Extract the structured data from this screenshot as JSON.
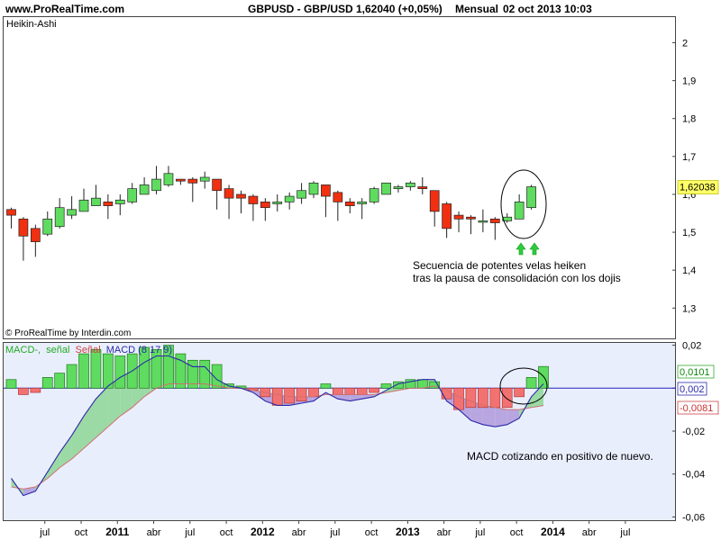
{
  "header": {
    "site": "www.ProRealTime.com",
    "instrument": "GBPUSD - GBP/USD",
    "quote": "1,62040 (+0,05%)",
    "period": "Mensual",
    "datetime": "02 oct 2013 10:03"
  },
  "credit": "© ProRealTime by Interdin.com",
  "price_panel": {
    "title": "Heikin-Ashi",
    "current_price_label": "1,62038",
    "annotation_lines": [
      "Secuencia de potentes velas heiken",
      "tras la pausa de consolidación con los dojis"
    ]
  },
  "macd_panel": {
    "legend": {
      "macd_minus": "MACD-,",
      "signal_word": "señal",
      "senal_series": "Señal",
      "macd_series": "MACD (8 17 9)"
    },
    "value_labels": {
      "histogram": "0,0101",
      "macd": "0,002",
      "signal": "-0,0081"
    },
    "annotation": "MACD cotizando en positivo de nuevo."
  },
  "colors": {
    "bull": "#5fdc5f",
    "bear": "#f03010",
    "hist_pos": "#5fdc5f",
    "hist_neg": "#f27272",
    "macd_line": "#2a2aa8",
    "signal_line": "#d07070",
    "fill_up": "#9bd9a5",
    "fill_down": "#b8a6e0",
    "zero_line": "#2222bb",
    "macd_bg": "#e9eefc",
    "price_label_bg": "#ffff66"
  },
  "chart_data": [
    {
      "type": "candlestick",
      "title": "GBPUSD - GBP/USD",
      "subtitle": "Heikin-Ashi",
      "x_tick_labels": [
        "jul",
        "oct",
        "2011",
        "abr",
        "jul",
        "oct",
        "2012",
        "abr",
        "jul",
        "oct",
        "2013",
        "abr",
        "jul",
        "oct",
        "2014",
        "abr",
        "jul"
      ],
      "y_ticks": [
        1.3,
        1.4,
        1.5,
        1.6,
        1.7,
        1.8,
        1.9,
        2.0
      ],
      "y_tick_labels": [
        "1,3",
        "1,4",
        "1,5",
        "1,6",
        "1,7",
        "1,8",
        "1,9",
        "2"
      ],
      "ylim": [
        1.22,
        2.07
      ],
      "grid": false,
      "candles": [
        {
          "open": 1.56,
          "high": 1.565,
          "low": 1.51,
          "close": 1.545
        },
        {
          "open": 1.535,
          "high": 1.54,
          "low": 1.425,
          "close": 1.49
        },
        {
          "open": 1.51,
          "high": 1.52,
          "low": 1.435,
          "close": 1.475
        },
        {
          "open": 1.495,
          "high": 1.555,
          "low": 1.49,
          "close": 1.535
        },
        {
          "open": 1.515,
          "high": 1.59,
          "low": 1.51,
          "close": 1.565
        },
        {
          "open": 1.545,
          "high": 1.595,
          "low": 1.535,
          "close": 1.56
        },
        {
          "open": 1.555,
          "high": 1.615,
          "low": 1.555,
          "close": 1.585
        },
        {
          "open": 1.57,
          "high": 1.625,
          "low": 1.57,
          "close": 1.59
        },
        {
          "open": 1.58,
          "high": 1.6,
          "low": 1.535,
          "close": 1.57
        },
        {
          "open": 1.575,
          "high": 1.6,
          "low": 1.545,
          "close": 1.585
        },
        {
          "open": 1.58,
          "high": 1.63,
          "low": 1.575,
          "close": 1.615
        },
        {
          "open": 1.6,
          "high": 1.645,
          "low": 1.6,
          "close": 1.625
        },
        {
          "open": 1.61,
          "high": 1.675,
          "low": 1.6,
          "close": 1.64
        },
        {
          "open": 1.625,
          "high": 1.675,
          "low": 1.62,
          "close": 1.655
        },
        {
          "open": 1.64,
          "high": 1.64,
          "low": 1.625,
          "close": 1.635
        },
        {
          "open": 1.64,
          "high": 1.645,
          "low": 1.58,
          "close": 1.63
        },
        {
          "open": 1.635,
          "high": 1.66,
          "low": 1.615,
          "close": 1.645
        },
        {
          "open": 1.64,
          "high": 1.64,
          "low": 1.56,
          "close": 1.61
        },
        {
          "open": 1.615,
          "high": 1.625,
          "low": 1.535,
          "close": 1.59
        },
        {
          "open": 1.6,
          "high": 1.61,
          "low": 1.55,
          "close": 1.59
        },
        {
          "open": 1.595,
          "high": 1.6,
          "low": 1.53,
          "close": 1.575
        },
        {
          "open": 1.58,
          "high": 1.59,
          "low": 1.53,
          "close": 1.565
        },
        {
          "open": 1.575,
          "high": 1.6,
          "low": 1.555,
          "close": 1.58
        },
        {
          "open": 1.58,
          "high": 1.605,
          "low": 1.56,
          "close": 1.595
        },
        {
          "open": 1.59,
          "high": 1.63,
          "low": 1.575,
          "close": 1.61
        },
        {
          "open": 1.6,
          "high": 1.635,
          "low": 1.59,
          "close": 1.63
        },
        {
          "open": 1.625,
          "high": 1.625,
          "low": 1.54,
          "close": 1.595
        },
        {
          "open": 1.605,
          "high": 1.61,
          "low": 1.53,
          "close": 1.58
        },
        {
          "open": 1.58,
          "high": 1.59,
          "low": 1.55,
          "close": 1.57
        },
        {
          "open": 1.575,
          "high": 1.59,
          "low": 1.535,
          "close": 1.58
        },
        {
          "open": 1.58,
          "high": 1.62,
          "low": 1.575,
          "close": 1.615
        },
        {
          "open": 1.6,
          "high": 1.625,
          "low": 1.6,
          "close": 1.63
        },
        {
          "open": 1.615,
          "high": 1.625,
          "low": 1.605,
          "close": 1.62
        },
        {
          "open": 1.62,
          "high": 1.635,
          "low": 1.61,
          "close": 1.63
        },
        {
          "open": 1.62,
          "high": 1.645,
          "low": 1.6,
          "close": 1.615
        },
        {
          "open": 1.61,
          "high": 1.61,
          "low": 1.515,
          "close": 1.555
        },
        {
          "open": 1.575,
          "high": 1.58,
          "low": 1.485,
          "close": 1.51
        },
        {
          "open": 1.545,
          "high": 1.555,
          "low": 1.5,
          "close": 1.535
        },
        {
          "open": 1.54,
          "high": 1.545,
          "low": 1.495,
          "close": 1.535
        },
        {
          "open": 1.53,
          "high": 1.56,
          "low": 1.5,
          "close": 1.53
        },
        {
          "open": 1.535,
          "high": 1.54,
          "low": 1.48,
          "close": 1.525
        },
        {
          "open": 1.53,
          "high": 1.55,
          "low": 1.525,
          "close": 1.54
        },
        {
          "open": 1.535,
          "high": 1.6,
          "low": 1.535,
          "close": 1.58
        },
        {
          "open": 1.565,
          "high": 1.625,
          "low": 1.56,
          "close": 1.62
        }
      ]
    },
    {
      "type": "bar",
      "title": "MACD (8 17 9)",
      "y_ticks": [
        0.02,
        0.0,
        -0.02,
        -0.04,
        -0.06
      ],
      "y_tick_labels": [
        "0,02",
        "0",
        "-0,02",
        "-0,04",
        "-0,06"
      ],
      "ylim": [
        -0.0615,
        0.0215
      ],
      "grid": false,
      "series": [
        {
          "name": "MACD-,",
          "type": "bar",
          "values": [
            0.004,
            -0.003,
            -0.002,
            0.005,
            0.007,
            0.011,
            0.016,
            0.018,
            0.016,
            0.015,
            0.016,
            0.019,
            0.018,
            0.02,
            0.016,
            0.013,
            0.013,
            0.011,
            0.002,
            0.001,
            -0.001,
            -0.004,
            -0.008,
            -0.007,
            -0.006,
            -0.004,
            0.002,
            -0.003,
            -0.003,
            -0.003,
            -0.002,
            0.002,
            0.003,
            0.004,
            0.004,
            0.003,
            -0.005,
            -0.01,
            -0.009,
            -0.009,
            -0.009,
            -0.009,
            -0.004,
            0.005,
            0.0101
          ]
        },
        {
          "name": "Señal",
          "type": "line",
          "values": [
            -0.046,
            -0.047,
            -0.046,
            -0.042,
            -0.037,
            -0.033,
            -0.028,
            -0.023,
            -0.018,
            -0.013,
            -0.009,
            -0.004,
            0.0,
            0.002,
            0.002,
            0.002,
            0.002,
            0.001,
            0.0,
            0.0,
            -0.001,
            -0.002,
            -0.003,
            -0.004,
            -0.004,
            -0.004,
            -0.003,
            -0.003,
            -0.003,
            -0.003,
            -0.003,
            -0.002,
            -0.001,
            0.0,
            0.0,
            0.001,
            -0.001,
            -0.004,
            -0.006,
            -0.008,
            -0.009,
            -0.01,
            -0.01,
            -0.009,
            -0.0081
          ]
        },
        {
          "name": "MACD (8 17 9)",
          "type": "line",
          "values": [
            -0.042,
            -0.05,
            -0.048,
            -0.039,
            -0.03,
            -0.022,
            -0.013,
            -0.005,
            0.001,
            0.005,
            0.008,
            0.012,
            0.015,
            0.015,
            0.013,
            0.01,
            0.01,
            0.004,
            0.001,
            0.0,
            -0.002,
            -0.006,
            -0.008,
            -0.008,
            -0.007,
            -0.006,
            -0.002,
            -0.005,
            -0.006,
            -0.005,
            -0.004,
            -0.001,
            0.002,
            0.003,
            0.004,
            0.004,
            -0.006,
            -0.01,
            -0.015,
            -0.017,
            -0.018,
            -0.017,
            -0.014,
            -0.004,
            0.002
          ]
        }
      ]
    }
  ]
}
